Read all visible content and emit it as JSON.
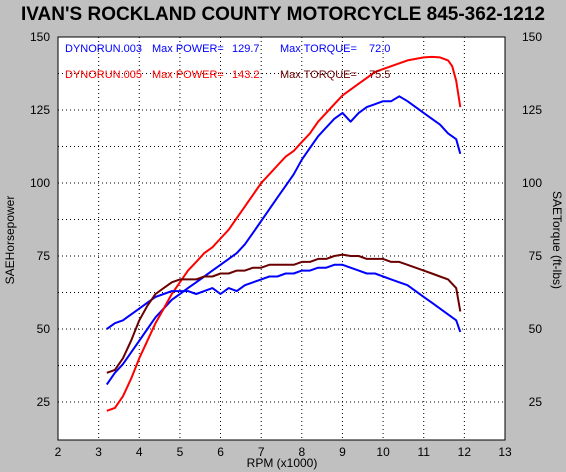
{
  "chart_data": {
    "type": "line",
    "title": "IVAN'S ROCKLAND COUNTY MOTORCYCLE 845-362-1212",
    "xlabel": "RPM (x1000)",
    "ylabel": "SAEHorsepower",
    "y2label": "SAETorque (ft-lbs)",
    "xlim": [
      2,
      13
    ],
    "ylim": [
      12,
      150
    ],
    "y2lim": [
      12,
      150
    ],
    "x_ticks": [
      "2",
      "3",
      "4",
      "5",
      "6",
      "7",
      "8",
      "9",
      "10",
      "11",
      "12",
      "13"
    ],
    "y_ticks": [
      "25",
      "50",
      "75",
      "100",
      "125",
      "150"
    ],
    "y2_ticks": [
      "25",
      "50",
      "75",
      "100",
      "125",
      "150"
    ],
    "grid": true,
    "legend": [
      {
        "run": "DYNORUN.003",
        "power_label": "Max POWER=",
        "power_value": "129.7",
        "torque_label": "Max TORQUE=",
        "torque_value": "72.0",
        "color": "#0000ff"
      },
      {
        "run": "DYNORUN.005",
        "power_label": "Max POWER=",
        "power_value": "143.2",
        "torque_label": "Max TORQUE=",
        "torque_value": "75.5",
        "color": "#ff0000"
      }
    ],
    "series": [
      {
        "name": "DYNORUN.003",
        "measure": "power",
        "color": "#0000ff",
        "x": [
          3.2,
          3.4,
          3.6,
          3.8,
          4.0,
          4.2,
          4.4,
          4.6,
          4.8,
          5.0,
          5.2,
          5.4,
          5.6,
          5.8,
          6.0,
          6.2,
          6.4,
          6.6,
          6.8,
          7.0,
          7.2,
          7.4,
          7.6,
          7.8,
          8.0,
          8.2,
          8.4,
          8.6,
          8.8,
          9.0,
          9.2,
          9.4,
          9.6,
          9.8,
          10.0,
          10.2,
          10.4,
          10.6,
          10.8,
          11.0,
          11.2,
          11.4,
          11.6,
          11.8,
          11.9
        ],
        "y": [
          31,
          35,
          38,
          42,
          46,
          50,
          54,
          57,
          60,
          62,
          64,
          66,
          68,
          70,
          72,
          74,
          76,
          79,
          83,
          87,
          91,
          95,
          99,
          103,
          108,
          112,
          116,
          119,
          122,
          124,
          121,
          124,
          126,
          127,
          128,
          128,
          129.7,
          128,
          126,
          124,
          122,
          120,
          117,
          115,
          110
        ]
      },
      {
        "name": "DYNORUN.005",
        "measure": "power",
        "color": "#ff0000",
        "x": [
          3.2,
          3.4,
          3.6,
          3.8,
          4.0,
          4.2,
          4.4,
          4.6,
          4.8,
          5.0,
          5.2,
          5.4,
          5.6,
          5.8,
          6.0,
          6.2,
          6.4,
          6.6,
          6.8,
          7.0,
          7.2,
          7.4,
          7.6,
          7.8,
          8.0,
          8.2,
          8.4,
          8.6,
          8.8,
          9.0,
          9.2,
          9.4,
          9.6,
          9.8,
          10.0,
          10.2,
          10.4,
          10.6,
          10.8,
          11.0,
          11.2,
          11.4,
          11.6,
          11.7,
          11.8,
          11.9
        ],
        "y": [
          22,
          23,
          27,
          33,
          40,
          46,
          52,
          57,
          62,
          66,
          70,
          73,
          76,
          78,
          81,
          84,
          88,
          92,
          96,
          100,
          103,
          106,
          109,
          111,
          114,
          117,
          121,
          124,
          127,
          130,
          132,
          134,
          136,
          138,
          139,
          140,
          141,
          142,
          142.5,
          143,
          143.2,
          143,
          142,
          140,
          135,
          126
        ]
      },
      {
        "name": "DYNORUN.003",
        "measure": "torque",
        "color": "#0000ff",
        "x": [
          3.2,
          3.4,
          3.6,
          3.8,
          4.0,
          4.2,
          4.4,
          4.6,
          4.8,
          5.0,
          5.2,
          5.4,
          5.6,
          5.8,
          6.0,
          6.2,
          6.4,
          6.6,
          6.8,
          7.0,
          7.2,
          7.4,
          7.6,
          7.8,
          8.0,
          8.2,
          8.4,
          8.6,
          8.8,
          9.0,
          9.2,
          9.4,
          9.6,
          9.8,
          10.0,
          10.2,
          10.4,
          10.6,
          10.8,
          11.0,
          11.2,
          11.4,
          11.6,
          11.8,
          11.9
        ],
        "y": [
          50,
          52,
          53,
          55,
          57,
          59,
          61,
          62,
          63,
          63,
          63,
          62,
          63,
          64,
          62,
          64,
          63,
          65,
          66,
          67,
          68,
          68,
          69,
          69,
          70,
          70,
          71,
          71,
          72,
          72,
          71,
          70,
          69,
          69,
          68,
          67,
          66,
          65,
          63,
          61,
          59,
          57,
          55,
          53,
          49
        ]
      },
      {
        "name": "DYNORUN.005",
        "measure": "torque",
        "color": "#6b0000",
        "x": [
          3.2,
          3.4,
          3.6,
          3.8,
          4.0,
          4.2,
          4.4,
          4.6,
          4.8,
          5.0,
          5.2,
          5.4,
          5.6,
          5.8,
          6.0,
          6.2,
          6.4,
          6.6,
          6.8,
          7.0,
          7.2,
          7.4,
          7.6,
          7.8,
          8.0,
          8.2,
          8.4,
          8.6,
          8.8,
          9.0,
          9.2,
          9.4,
          9.6,
          9.8,
          10.0,
          10.2,
          10.4,
          10.6,
          10.8,
          11.0,
          11.2,
          11.4,
          11.6,
          11.8,
          11.9
        ],
        "y": [
          35,
          36,
          40,
          46,
          53,
          58,
          62,
          64,
          66,
          67,
          67,
          67,
          68,
          68,
          69,
          69,
          70,
          70,
          71,
          71,
          72,
          72,
          72,
          72,
          73,
          73,
          74,
          74,
          75,
          75.5,
          75,
          75,
          74,
          74,
          74,
          73,
          73,
          72,
          71,
          70,
          69,
          68,
          67,
          64,
          56
        ]
      }
    ]
  }
}
